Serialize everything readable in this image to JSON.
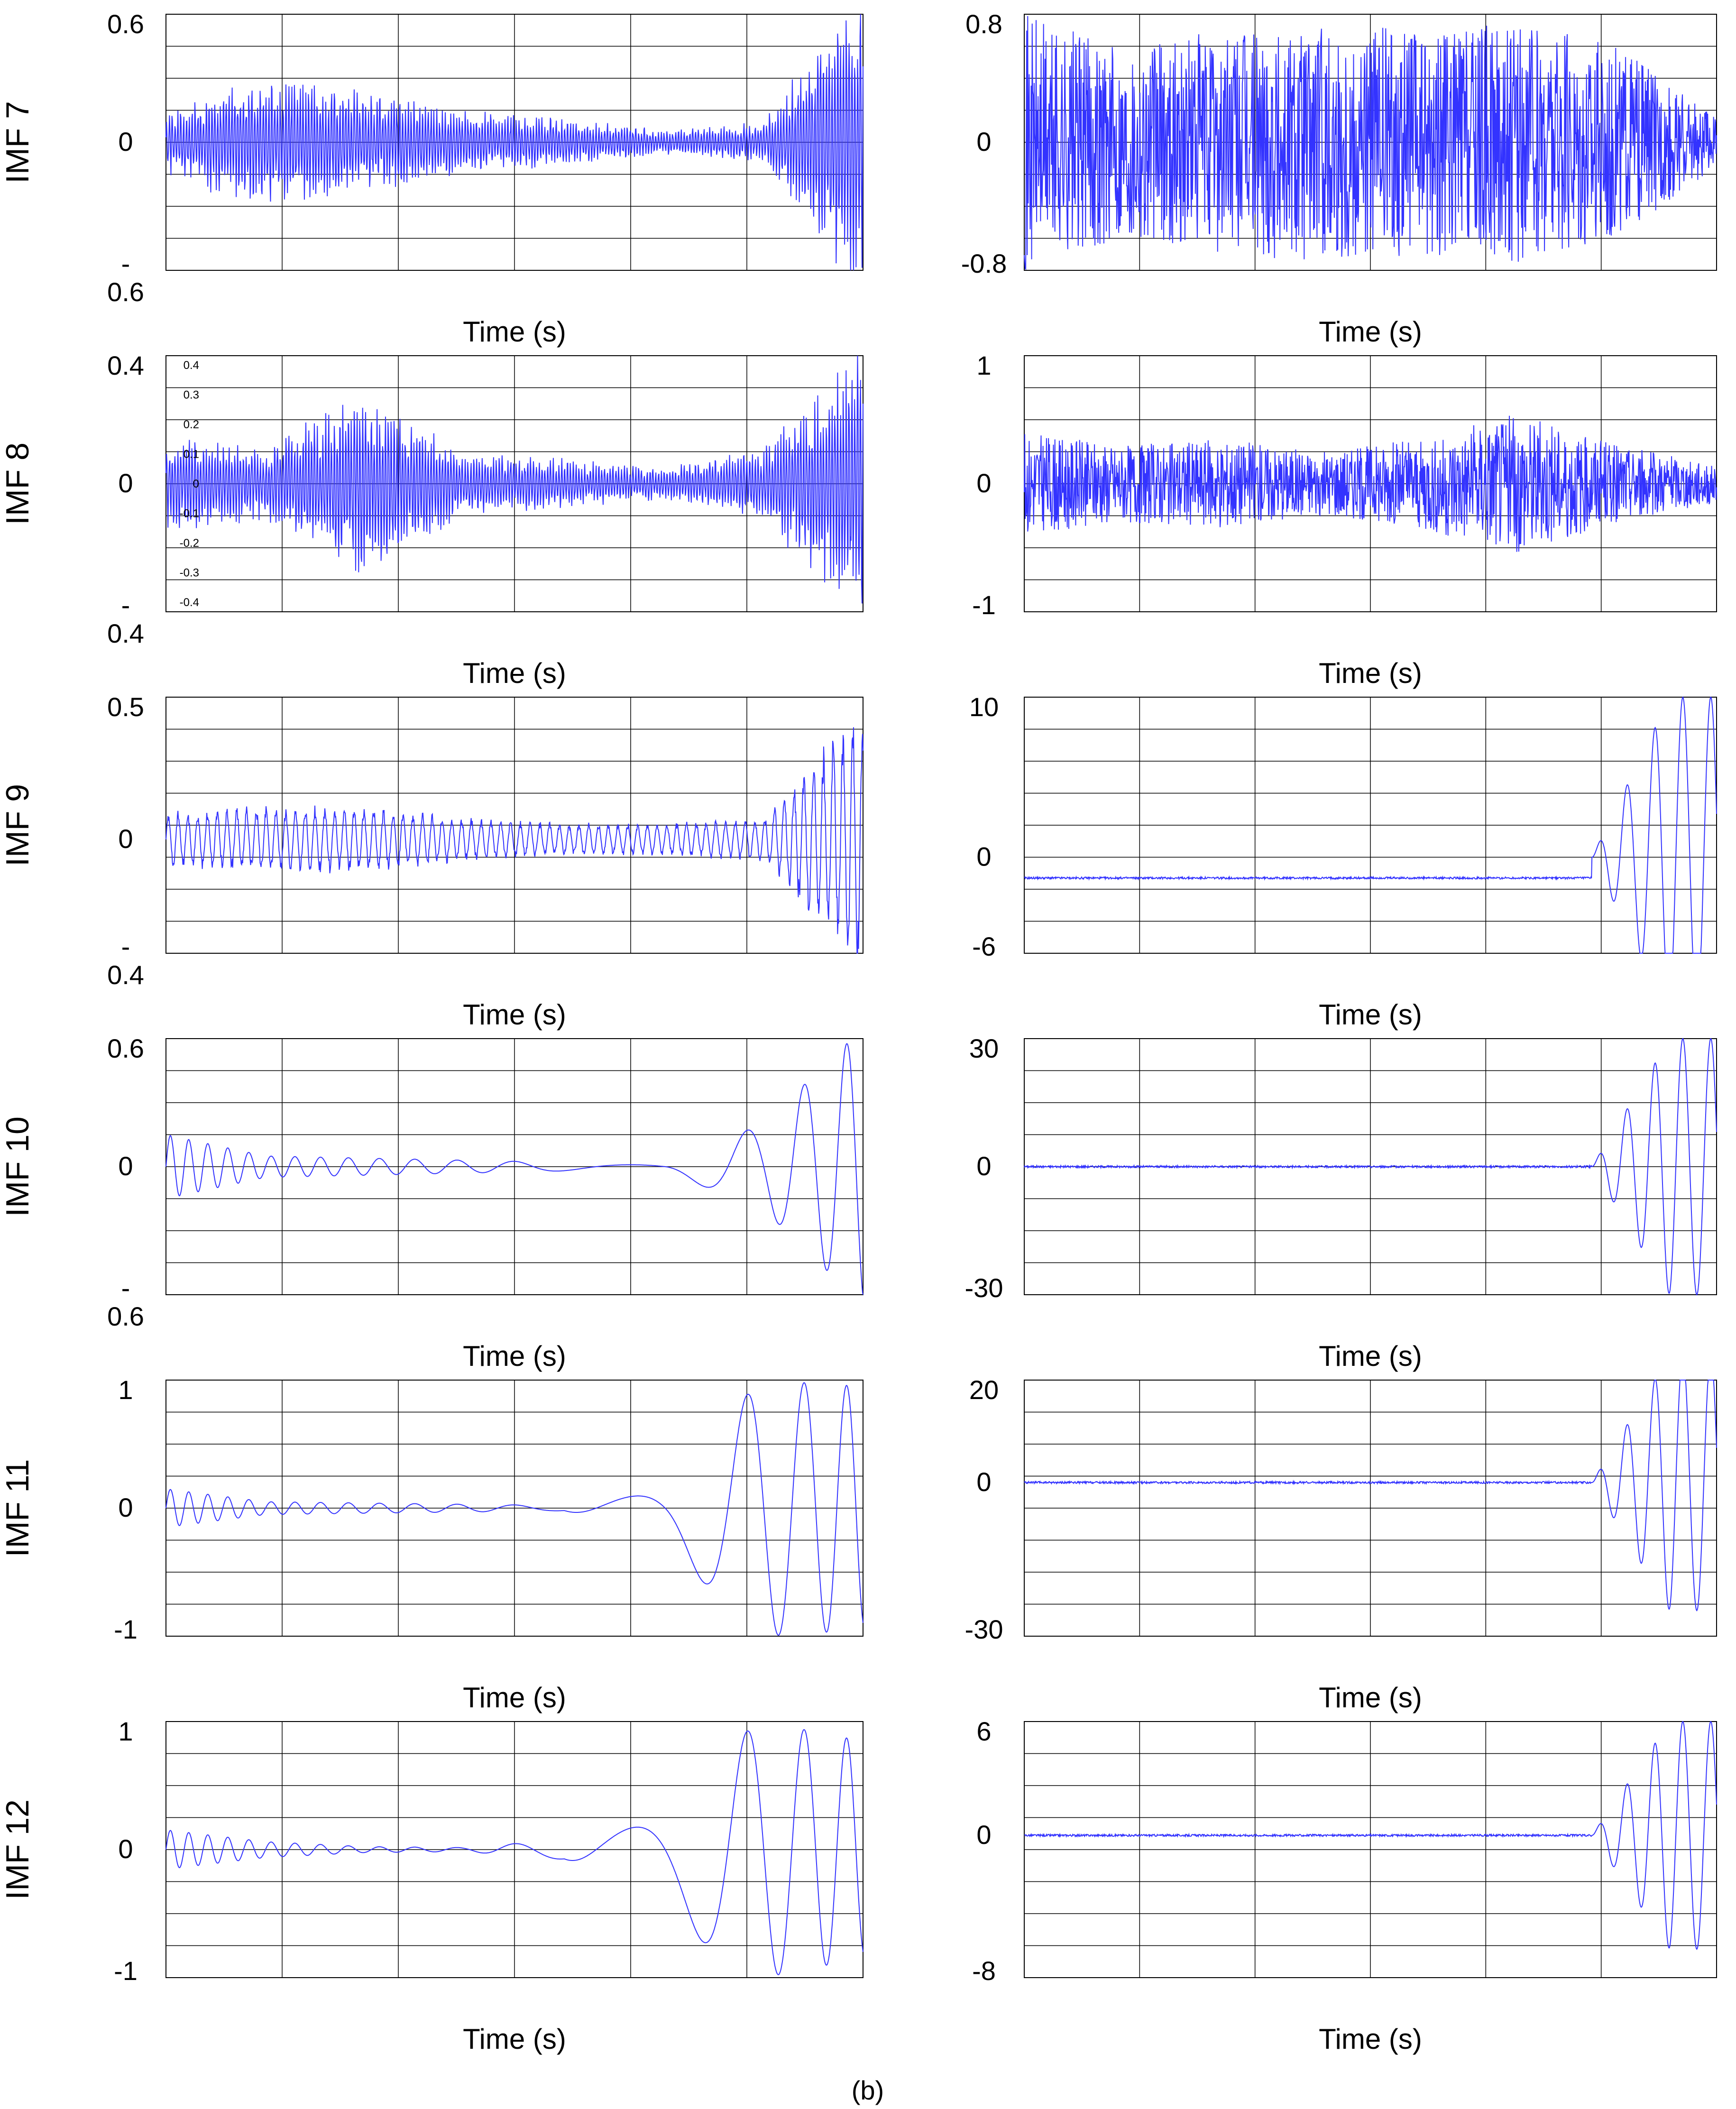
{
  "caption": "(b)",
  "styles": {
    "wave_color": "#3333ff",
    "grid_color": "#000000",
    "text_color": "#000000"
  },
  "chart_data": [
    {
      "type": "line",
      "row_label": "IMF 7",
      "xlabel": "Time (s)",
      "ylim": [
        -0.6,
        0.6
      ],
      "ytick_labels": [
        "0.6",
        "0",
        "-\n0.6"
      ],
      "grid": true,
      "wave": "noisy",
      "amp": [
        0.15,
        0.35,
        0.25,
        0.15,
        0.12,
        0.06,
        0.1,
        0.8
      ],
      "seed": 7
    },
    {
      "type": "line",
      "row_label": "",
      "xlabel": "Time (s)",
      "ylim": [
        -0.8,
        0.8
      ],
      "ytick_labels": [
        "0.8",
        "0",
        "-0.8"
      ],
      "grid": true,
      "wave": "dense",
      "amp": [
        0.8,
        0.6,
        0.7,
        0.75,
        0.7,
        0.75,
        0.6,
        0.15
      ],
      "seed": 71
    },
    {
      "type": "line",
      "row_label": "IMF 8",
      "xlabel": "Time (s)",
      "ylim": [
        -0.4,
        0.4
      ],
      "ytick_labels": [
        "0.4",
        "0",
        "-\n0.4"
      ],
      "inner_ticks": [
        "0.4",
        "0.3",
        "0.2",
        "0.1",
        "0",
        "-0.1",
        "-0.2",
        "-0.3",
        "-0.4"
      ],
      "grid": true,
      "wave": "noisy",
      "amp": [
        0.15,
        0.12,
        0.3,
        0.1,
        0.08,
        0.05,
        0.12,
        0.45
      ],
      "seed": 8
    },
    {
      "type": "line",
      "row_label": "",
      "xlabel": "Time (s)",
      "ylim": [
        -1,
        1
      ],
      "ytick_labels": [
        "1",
        "0",
        "-1"
      ],
      "grid": true,
      "wave": "dense",
      "amp": [
        0.4,
        0.3,
        0.35,
        0.25,
        0.35,
        0.55,
        0.3,
        0.15
      ],
      "seed": 81
    },
    {
      "type": "line",
      "row_label": "IMF 9",
      "xlabel": "Time (s)",
      "ylim": [
        -0.4,
        0.5
      ],
      "ytick_labels": [
        "0.5",
        "0",
        "-\n0.4"
      ],
      "grid": true,
      "wave": "osc",
      "amp": [
        0.1,
        0.12,
        0.12,
        0.08,
        0.06,
        0.06,
        0.08,
        0.5
      ],
      "seed": 9
    },
    {
      "type": "line",
      "row_label": "",
      "xlabel": "Time (s)",
      "ylim": [
        -6,
        10
      ],
      "ytick_labels": [
        "10",
        "0",
        "-6"
      ],
      "grid": true,
      "wave": "burst",
      "baseline": -1.3,
      "burst_amp": 10,
      "seed": 91
    },
    {
      "type": "line",
      "row_label": "IMF 10",
      "xlabel": "Time (s)",
      "ylim": [
        -0.6,
        0.6
      ],
      "ytick_labels": [
        "0.6",
        "0",
        "-\n0.6"
      ],
      "grid": true,
      "wave": "smooth",
      "amp": [
        0.15,
        0.05,
        0.04,
        0.03,
        0.02,
        0.02,
        0.2,
        0.65
      ],
      "seed": 10
    },
    {
      "type": "line",
      "row_label": "",
      "xlabel": "Time (s)",
      "ylim": [
        -30,
        30
      ],
      "ytick_labels": [
        "30",
        "0",
        "-30"
      ],
      "grid": true,
      "wave": "burst",
      "baseline": 0,
      "burst_amp": 30,
      "seed": 101
    },
    {
      "type": "line",
      "row_label": "IMF 11",
      "xlabel": "Time (s)",
      "ylim": [
        -1,
        1
      ],
      "ytick_labels": [
        "1",
        "0",
        "-1"
      ],
      "grid": true,
      "wave": "smooth",
      "amp": [
        0.15,
        0.05,
        0.04,
        0.03,
        0.02,
        0.3,
        1.0,
        0.95
      ],
      "seed": 11
    },
    {
      "type": "line",
      "row_label": "",
      "xlabel": "Time (s)",
      "ylim": [
        -30,
        20
      ],
      "ytick_labels": [
        "20",
        "0",
        "-30"
      ],
      "grid": true,
      "wave": "burst",
      "baseline": 0,
      "burst_amp": 25,
      "seed": 111
    },
    {
      "type": "line",
      "row_label": "IMF 12",
      "xlabel": "Time (s)",
      "ylim": [
        -1.3,
        1.3
      ],
      "ytick_labels": [
        "1",
        "0",
        "-1"
      ],
      "grid": true,
      "wave": "smooth",
      "amp": [
        0.2,
        0.08,
        0.03,
        0.02,
        0.1,
        0.7,
        1.3,
        1.1
      ],
      "seed": 12
    },
    {
      "type": "line",
      "row_label": "",
      "xlabel": "Time (s)",
      "ylim": [
        -10,
        8
      ],
      "ytick_labels": [
        "6",
        "0",
        "-8"
      ],
      "grid": true,
      "wave": "burst",
      "baseline": 0,
      "burst_amp": 8,
      "seed": 121
    }
  ]
}
